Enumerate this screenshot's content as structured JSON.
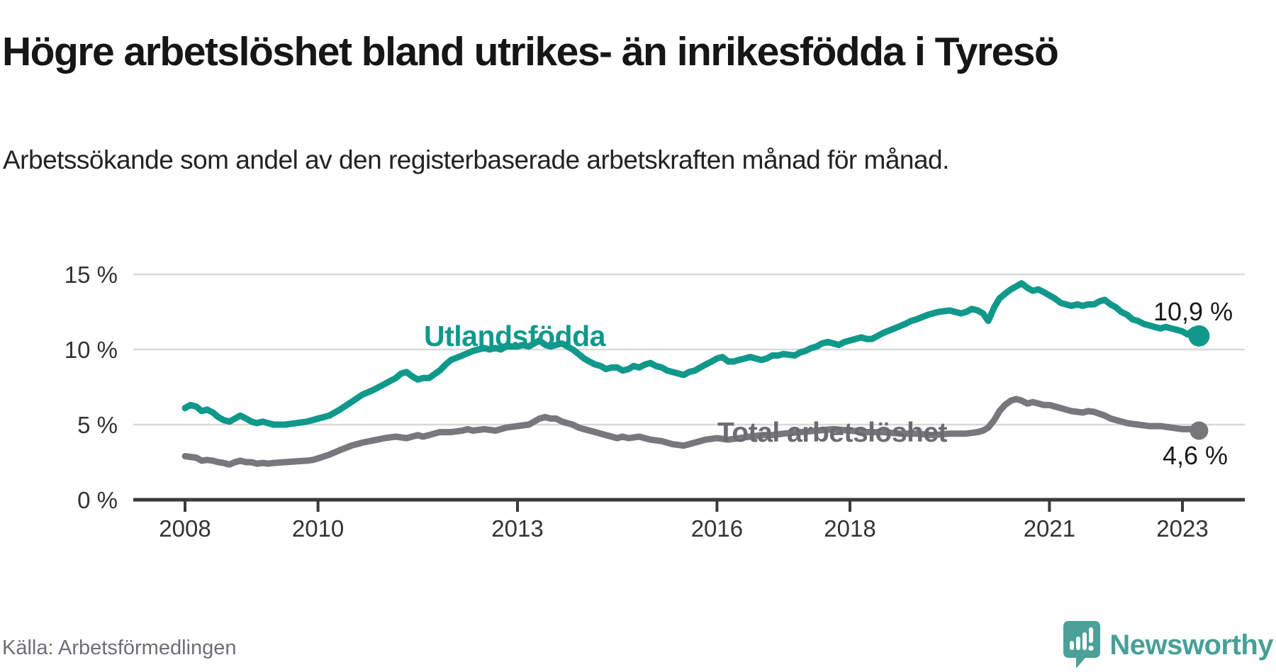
{
  "footer": {
    "source": "Källa: Arbetsförmedlingen",
    "brand": "Newsworthy",
    "brand_color": "#47a096",
    "logo_color": "#4ba197"
  },
  "chart_data": {
    "type": "line",
    "title": "Högre arbetslöshet bland utrikes- än inrikesfödda i Tyresö",
    "subtitle": "Arbetssökande som andel av den registerbaserade arbetskraften månad för månad.",
    "unit": "%",
    "grid": "horizontal-only",
    "legend_position": "inline-labels-on-lines",
    "colors": {
      "grid": "#d9d9d9",
      "axis": "#3a3a3a",
      "tick_text": "#333333",
      "value_label": "#1a1a1a",
      "title_text": "#161616",
      "source_text": "#6e6e78"
    },
    "x_axis": {
      "range": [
        2007.2,
        2023.95
      ],
      "ticks": [
        {
          "value": 2008,
          "label": "2008"
        },
        {
          "value": 2010,
          "label": "2010"
        },
        {
          "value": 2013,
          "label": "2013"
        },
        {
          "value": 2016,
          "label": "2016"
        },
        {
          "value": 2018,
          "label": "2018"
        },
        {
          "value": 2021,
          "label": "2021"
        },
        {
          "value": 2023,
          "label": "2023"
        }
      ]
    },
    "y_axis": {
      "range": [
        0,
        15.6
      ],
      "ticks": [
        {
          "value": 0,
          "label": "0 %"
        },
        {
          "value": 5,
          "label": "5 %"
        },
        {
          "value": 10,
          "label": "10 %"
        },
        {
          "value": 15,
          "label": "15 %"
        }
      ]
    },
    "series": [
      {
        "name": "Utlandsfödda",
        "slug": "utlandsfodda",
        "color": "#10998b",
        "label_color": "#10998b",
        "end_label": "10,9 %",
        "end_value": 10.9,
        "points": [
          [
            2008.0,
            6.1
          ],
          [
            2008.08,
            6.3
          ],
          [
            2008.17,
            6.2
          ],
          [
            2008.25,
            5.9
          ],
          [
            2008.33,
            6.0
          ],
          [
            2008.42,
            5.8
          ],
          [
            2008.5,
            5.5
          ],
          [
            2008.58,
            5.3
          ],
          [
            2008.67,
            5.2
          ],
          [
            2008.75,
            5.4
          ],
          [
            2008.83,
            5.6
          ],
          [
            2008.92,
            5.4
          ],
          [
            2009.0,
            5.2
          ],
          [
            2009.08,
            5.1
          ],
          [
            2009.17,
            5.2
          ],
          [
            2009.25,
            5.1
          ],
          [
            2009.33,
            5.0
          ],
          [
            2009.5,
            5.0
          ],
          [
            2009.67,
            5.1
          ],
          [
            2009.83,
            5.2
          ],
          [
            2009.92,
            5.3
          ],
          [
            2010.0,
            5.4
          ],
          [
            2010.17,
            5.6
          ],
          [
            2010.33,
            6.0
          ],
          [
            2010.5,
            6.5
          ],
          [
            2010.67,
            7.0
          ],
          [
            2010.83,
            7.3
          ],
          [
            2011.0,
            7.7
          ],
          [
            2011.17,
            8.1
          ],
          [
            2011.25,
            8.4
          ],
          [
            2011.33,
            8.5
          ],
          [
            2011.42,
            8.2
          ],
          [
            2011.5,
            8.0
          ],
          [
            2011.58,
            8.1
          ],
          [
            2011.67,
            8.1
          ],
          [
            2011.83,
            8.6
          ],
          [
            2011.92,
            9.0
          ],
          [
            2012.0,
            9.3
          ],
          [
            2012.17,
            9.6
          ],
          [
            2012.33,
            9.9
          ],
          [
            2012.5,
            10.1
          ],
          [
            2012.58,
            10.0
          ],
          [
            2012.67,
            10.1
          ],
          [
            2012.75,
            10.0
          ],
          [
            2012.83,
            10.2
          ],
          [
            2013.0,
            10.2
          ],
          [
            2013.08,
            10.3
          ],
          [
            2013.17,
            10.2
          ],
          [
            2013.25,
            10.4
          ],
          [
            2013.33,
            10.6
          ],
          [
            2013.42,
            10.3
          ],
          [
            2013.5,
            10.2
          ],
          [
            2013.58,
            10.3
          ],
          [
            2013.67,
            10.4
          ],
          [
            2013.75,
            10.2
          ],
          [
            2013.83,
            10.0
          ],
          [
            2013.92,
            9.7
          ],
          [
            2014.0,
            9.4
          ],
          [
            2014.08,
            9.2
          ],
          [
            2014.17,
            9.0
          ],
          [
            2014.25,
            8.9
          ],
          [
            2014.33,
            8.7
          ],
          [
            2014.42,
            8.8
          ],
          [
            2014.5,
            8.8
          ],
          [
            2014.58,
            8.6
          ],
          [
            2014.67,
            8.7
          ],
          [
            2014.75,
            8.9
          ],
          [
            2014.83,
            8.8
          ],
          [
            2014.92,
            9.0
          ],
          [
            2015.0,
            9.1
          ],
          [
            2015.08,
            8.9
          ],
          [
            2015.17,
            8.8
          ],
          [
            2015.25,
            8.6
          ],
          [
            2015.33,
            8.5
          ],
          [
            2015.42,
            8.4
          ],
          [
            2015.5,
            8.3
          ],
          [
            2015.58,
            8.5
          ],
          [
            2015.67,
            8.6
          ],
          [
            2015.75,
            8.8
          ],
          [
            2015.83,
            9.0
          ],
          [
            2015.92,
            9.2
          ],
          [
            2016.0,
            9.4
          ],
          [
            2016.08,
            9.5
          ],
          [
            2016.17,
            9.2
          ],
          [
            2016.25,
            9.2
          ],
          [
            2016.33,
            9.3
          ],
          [
            2016.42,
            9.4
          ],
          [
            2016.5,
            9.5
          ],
          [
            2016.58,
            9.4
          ],
          [
            2016.67,
            9.3
          ],
          [
            2016.75,
            9.4
          ],
          [
            2016.83,
            9.6
          ],
          [
            2016.92,
            9.6
          ],
          [
            2017.0,
            9.7
          ],
          [
            2017.17,
            9.6
          ],
          [
            2017.25,
            9.8
          ],
          [
            2017.33,
            9.9
          ],
          [
            2017.42,
            10.1
          ],
          [
            2017.5,
            10.2
          ],
          [
            2017.58,
            10.4
          ],
          [
            2017.67,
            10.5
          ],
          [
            2017.75,
            10.4
          ],
          [
            2017.83,
            10.3
          ],
          [
            2017.92,
            10.5
          ],
          [
            2018.0,
            10.6
          ],
          [
            2018.17,
            10.8
          ],
          [
            2018.25,
            10.7
          ],
          [
            2018.33,
            10.7
          ],
          [
            2018.5,
            11.1
          ],
          [
            2018.67,
            11.4
          ],
          [
            2018.83,
            11.7
          ],
          [
            2018.92,
            11.9
          ],
          [
            2019.0,
            12.0
          ],
          [
            2019.17,
            12.3
          ],
          [
            2019.33,
            12.5
          ],
          [
            2019.5,
            12.6
          ],
          [
            2019.58,
            12.5
          ],
          [
            2019.67,
            12.4
          ],
          [
            2019.75,
            12.5
          ],
          [
            2019.83,
            12.7
          ],
          [
            2019.92,
            12.6
          ],
          [
            2020.0,
            12.4
          ],
          [
            2020.08,
            11.9
          ],
          [
            2020.17,
            12.8
          ],
          [
            2020.25,
            13.4
          ],
          [
            2020.33,
            13.7
          ],
          [
            2020.42,
            14.0
          ],
          [
            2020.5,
            14.2
          ],
          [
            2020.58,
            14.4
          ],
          [
            2020.67,
            14.1
          ],
          [
            2020.75,
            13.9
          ],
          [
            2020.83,
            14.0
          ],
          [
            2020.92,
            13.8
          ],
          [
            2021.0,
            13.6
          ],
          [
            2021.08,
            13.4
          ],
          [
            2021.17,
            13.1
          ],
          [
            2021.25,
            13.0
          ],
          [
            2021.33,
            12.9
          ],
          [
            2021.42,
            13.0
          ],
          [
            2021.5,
            12.9
          ],
          [
            2021.58,
            13.0
          ],
          [
            2021.67,
            13.0
          ],
          [
            2021.75,
            13.2
          ],
          [
            2021.83,
            13.3
          ],
          [
            2021.92,
            13.0
          ],
          [
            2022.0,
            12.8
          ],
          [
            2022.08,
            12.5
          ],
          [
            2022.17,
            12.3
          ],
          [
            2022.25,
            12.0
          ],
          [
            2022.33,
            11.9
          ],
          [
            2022.42,
            11.7
          ],
          [
            2022.5,
            11.6
          ],
          [
            2022.58,
            11.5
          ],
          [
            2022.67,
            11.4
          ],
          [
            2022.75,
            11.5
          ],
          [
            2022.83,
            11.4
          ],
          [
            2022.92,
            11.3
          ],
          [
            2023.0,
            11.2
          ],
          [
            2023.08,
            11.0
          ],
          [
            2023.17,
            11.3
          ],
          [
            2023.25,
            10.9
          ]
        ]
      },
      {
        "name": "Total arbetslöshet",
        "slug": "total-arbetsloshet",
        "color": "#78787c",
        "label_color": "#6b6b72",
        "end_label": "4,6 %",
        "end_value": 4.6,
        "points": [
          [
            2008.0,
            2.9
          ],
          [
            2008.08,
            2.85
          ],
          [
            2008.17,
            2.8
          ],
          [
            2008.25,
            2.6
          ],
          [
            2008.33,
            2.65
          ],
          [
            2008.42,
            2.6
          ],
          [
            2008.5,
            2.5
          ],
          [
            2008.58,
            2.45
          ],
          [
            2008.67,
            2.35
          ],
          [
            2008.75,
            2.5
          ],
          [
            2008.83,
            2.6
          ],
          [
            2008.92,
            2.5
          ],
          [
            2009.0,
            2.5
          ],
          [
            2009.08,
            2.4
          ],
          [
            2009.17,
            2.45
          ],
          [
            2009.25,
            2.4
          ],
          [
            2009.33,
            2.45
          ],
          [
            2009.5,
            2.5
          ],
          [
            2009.67,
            2.55
          ],
          [
            2009.83,
            2.6
          ],
          [
            2009.92,
            2.65
          ],
          [
            2010.0,
            2.75
          ],
          [
            2010.17,
            3.0
          ],
          [
            2010.33,
            3.3
          ],
          [
            2010.5,
            3.6
          ],
          [
            2010.67,
            3.8
          ],
          [
            2010.83,
            3.95
          ],
          [
            2011.0,
            4.1
          ],
          [
            2011.17,
            4.2
          ],
          [
            2011.33,
            4.1
          ],
          [
            2011.5,
            4.3
          ],
          [
            2011.58,
            4.2
          ],
          [
            2011.67,
            4.3
          ],
          [
            2011.83,
            4.5
          ],
          [
            2012.0,
            4.5
          ],
          [
            2012.17,
            4.6
          ],
          [
            2012.25,
            4.7
          ],
          [
            2012.33,
            4.6
          ],
          [
            2012.5,
            4.7
          ],
          [
            2012.67,
            4.6
          ],
          [
            2012.75,
            4.7
          ],
          [
            2012.83,
            4.8
          ],
          [
            2013.0,
            4.9
          ],
          [
            2013.17,
            5.0
          ],
          [
            2013.25,
            5.2
          ],
          [
            2013.33,
            5.4
          ],
          [
            2013.42,
            5.5
          ],
          [
            2013.5,
            5.4
          ],
          [
            2013.58,
            5.4
          ],
          [
            2013.67,
            5.2
          ],
          [
            2013.75,
            5.1
          ],
          [
            2013.83,
            5.0
          ],
          [
            2013.92,
            4.8
          ],
          [
            2014.0,
            4.7
          ],
          [
            2014.17,
            4.5
          ],
          [
            2014.33,
            4.3
          ],
          [
            2014.5,
            4.1
          ],
          [
            2014.58,
            4.2
          ],
          [
            2014.67,
            4.1
          ],
          [
            2014.83,
            4.2
          ],
          [
            2015.0,
            4.0
          ],
          [
            2015.17,
            3.9
          ],
          [
            2015.33,
            3.7
          ],
          [
            2015.5,
            3.6
          ],
          [
            2015.67,
            3.8
          ],
          [
            2015.83,
            4.0
          ],
          [
            2016.0,
            4.1
          ],
          [
            2016.17,
            4.0
          ],
          [
            2016.33,
            4.1
          ],
          [
            2016.5,
            4.2
          ],
          [
            2016.67,
            4.3
          ],
          [
            2016.83,
            4.3
          ],
          [
            2017.0,
            4.4
          ],
          [
            2017.25,
            4.5
          ],
          [
            2017.5,
            4.6
          ],
          [
            2017.75,
            4.7
          ],
          [
            2018.0,
            4.6
          ],
          [
            2018.25,
            4.5
          ],
          [
            2018.5,
            4.5
          ],
          [
            2018.75,
            4.4
          ],
          [
            2019.0,
            4.4
          ],
          [
            2019.25,
            4.3
          ],
          [
            2019.5,
            4.4
          ],
          [
            2019.75,
            4.4
          ],
          [
            2019.92,
            4.5
          ],
          [
            2020.0,
            4.6
          ],
          [
            2020.08,
            4.8
          ],
          [
            2020.17,
            5.3
          ],
          [
            2020.25,
            5.9
          ],
          [
            2020.33,
            6.3
          ],
          [
            2020.42,
            6.6
          ],
          [
            2020.5,
            6.7
          ],
          [
            2020.58,
            6.6
          ],
          [
            2020.67,
            6.4
          ],
          [
            2020.75,
            6.5
          ],
          [
            2020.83,
            6.4
          ],
          [
            2020.92,
            6.3
          ],
          [
            2021.0,
            6.3
          ],
          [
            2021.17,
            6.1
          ],
          [
            2021.33,
            5.9
          ],
          [
            2021.42,
            5.85
          ],
          [
            2021.5,
            5.8
          ],
          [
            2021.58,
            5.9
          ],
          [
            2021.67,
            5.85
          ],
          [
            2021.83,
            5.6
          ],
          [
            2021.92,
            5.4
          ],
          [
            2022.0,
            5.3
          ],
          [
            2022.17,
            5.1
          ],
          [
            2022.33,
            5.0
          ],
          [
            2022.5,
            4.9
          ],
          [
            2022.67,
            4.9
          ],
          [
            2022.83,
            4.8
          ],
          [
            2023.0,
            4.7
          ],
          [
            2023.17,
            4.7
          ],
          [
            2023.25,
            4.6
          ]
        ]
      }
    ]
  }
}
